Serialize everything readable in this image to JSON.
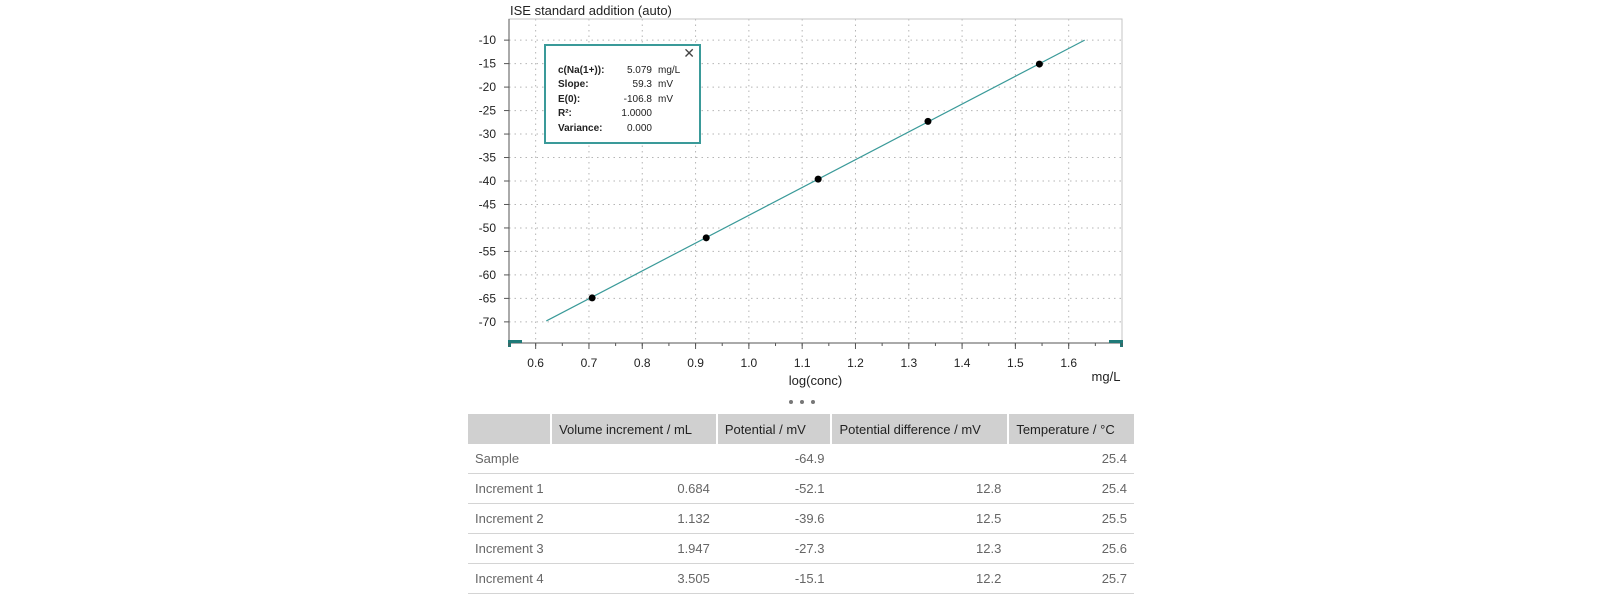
{
  "chart_data": {
    "type": "scatter",
    "title": "ISE standard addition (auto)",
    "xlabel": "log(conc)",
    "xunit": "mg/L",
    "ylabel": "",
    "xlim": [
      0.55,
      1.7
    ],
    "ylim": [
      -74.5,
      -5.5
    ],
    "xticks": [
      0.6,
      0.7,
      0.8,
      0.9,
      1.0,
      1.1,
      1.2,
      1.3,
      1.4,
      1.5,
      1.6
    ],
    "xtick_labels": [
      "0.6",
      "0.7",
      "0.8",
      "0.9",
      "1.0",
      "1.1",
      "1.2",
      "1.3",
      "1.4",
      "1.5",
      "1.6"
    ],
    "yticks": [
      -10,
      -15,
      -20,
      -25,
      -30,
      -35,
      -40,
      -45,
      -50,
      -55,
      -60,
      -65,
      -70
    ],
    "ytick_labels": [
      "-10",
      "-15",
      "-20",
      "-25",
      "-30",
      "-35",
      "-40",
      "-45",
      "-50",
      "-55",
      "-60",
      "-65",
      "-70"
    ],
    "grid": true,
    "points": {
      "x": [
        0.706,
        0.92,
        1.13,
        1.336,
        1.545
      ],
      "y": [
        -64.9,
        -52.1,
        -39.6,
        -27.3,
        -15.1
      ]
    },
    "fit_line": {
      "x": [
        0.62,
        1.63
      ],
      "y": [
        -69.8,
        -10.0
      ]
    },
    "colors": {
      "points": "#000000",
      "line": "#3a9a99",
      "axis_marker": "#1f7a78",
      "grid": "#b5b5b5"
    }
  },
  "result_box": {
    "rows": [
      {
        "label": "c(Na(1+)):",
        "value": "5.079",
        "unit": "mg/L"
      },
      {
        "label": "Slope:",
        "value": "59.3",
        "unit": "mV"
      },
      {
        "label": "E(0):",
        "value": "-106.8",
        "unit": "mV"
      },
      {
        "label": "R²:",
        "value": "1.0000",
        "unit": ""
      },
      {
        "label": "Variance:",
        "value": "0.000",
        "unit": ""
      }
    ]
  },
  "table": {
    "headers": [
      "",
      "Volume increment / mL",
      "Potential / mV",
      "Potential difference / mV",
      "Temperature / °C"
    ],
    "rows": [
      {
        "name": "Sample",
        "volume": "",
        "potential": "-64.9",
        "difference": "",
        "temperature": "25.4"
      },
      {
        "name": "Increment 1",
        "volume": "0.684",
        "potential": "-52.1",
        "difference": "12.8",
        "temperature": "25.4"
      },
      {
        "name": "Increment 2",
        "volume": "1.132",
        "potential": "-39.6",
        "difference": "12.5",
        "temperature": "25.5"
      },
      {
        "name": "Increment 3",
        "volume": "1.947",
        "potential": "-27.3",
        "difference": "12.3",
        "temperature": "25.6"
      },
      {
        "name": "Increment 4",
        "volume": "3.505",
        "potential": "-15.1",
        "difference": "12.2",
        "temperature": "25.7"
      }
    ]
  }
}
